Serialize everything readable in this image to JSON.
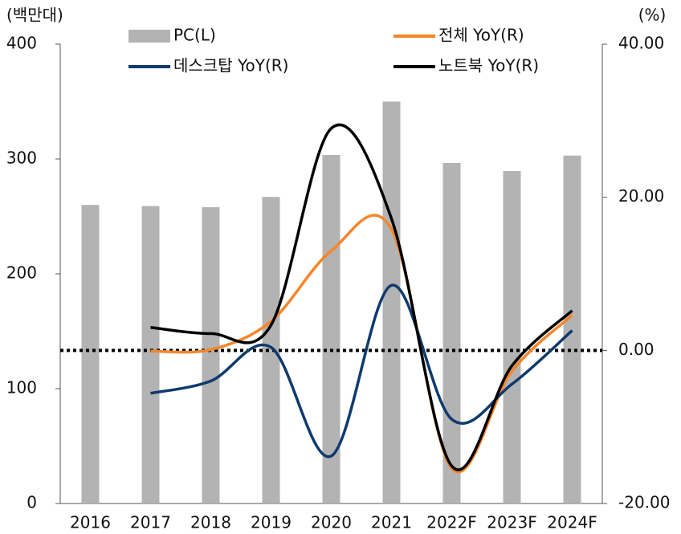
{
  "chart_data": {
    "type": "bar_line",
    "y_label": "(백만대)",
    "y2_label": "(%)",
    "categories": [
      "2016",
      "2017",
      "2018",
      "2019",
      "2020",
      "2021",
      "2022F",
      "2023F",
      "2024F"
    ],
    "series": [
      {
        "name": "PC(L)",
        "type": "bar",
        "axis": "y",
        "color": "#b3b3b3",
        "values": [
          260,
          259,
          258,
          267,
          303.5,
          350,
          296.5,
          289.5,
          303
        ]
      },
      {
        "name": "전체 YoY(R)",
        "type": "line",
        "axis": "y2",
        "color": "#f5862a",
        "values": [
          null,
          -0.1,
          0.1,
          3.8,
          13.0,
          15.8,
          -15.4,
          -2.7,
          4.6
        ]
      },
      {
        "name": "데스크탑 YoY(R)",
        "type": "line",
        "axis": "y2",
        "color": "#0f3a6e",
        "values": [
          null,
          -5.6,
          -4.0,
          0.4,
          -13.8,
          8.5,
          -9.0,
          -4.4,
          2.6
        ]
      },
      {
        "name": "노트북 YoY(R)",
        "type": "line",
        "axis": "y2",
        "color": "#000000",
        "values": [
          null,
          3.0,
          2.2,
          3.3,
          29.0,
          17.2,
          -15.1,
          -2.0,
          5.2
        ]
      }
    ],
    "ylim": [
      0,
      400
    ],
    "yticks": [
      0,
      100,
      200,
      300,
      400
    ],
    "y2lim": [
      -20,
      40
    ],
    "y2ticks": [
      {
        "value": -20,
        "label": "-20.00"
      },
      {
        "value": 0,
        "label": "0.00"
      },
      {
        "value": 20,
        "label": "20.00"
      },
      {
        "value": 40,
        "label": "40.00"
      }
    ],
    "reference_line": {
      "axis": "y2",
      "value": 0
    },
    "grid": false
  }
}
